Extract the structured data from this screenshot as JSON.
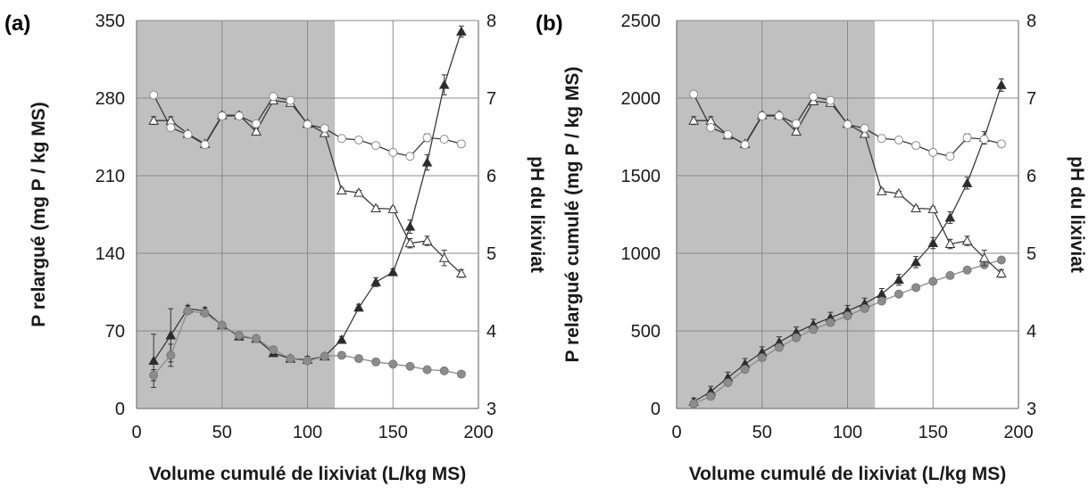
{
  "chart_data": [
    {
      "type": "line",
      "panel_label": "(a)",
      "xlabel": "Volume cumulé de lixiviat (L/kg MS)",
      "ylabel": "P relargué (mg P / kg MS)",
      "y2label": "pH du lixiviat",
      "xlim": [
        0,
        200
      ],
      "ylim": [
        0,
        350
      ],
      "y2lim": [
        3,
        8
      ],
      "xticks": [
        "0",
        "50",
        "100",
        "150",
        "200"
      ],
      "yticks": [
        "0",
        "70",
        "140",
        "210",
        "280",
        "350"
      ],
      "y2ticks": [
        "3",
        "4",
        "5",
        "6",
        "7",
        "8"
      ],
      "grid": true,
      "shaded_region_x": [
        0,
        116
      ],
      "series": [
        {
          "axis": "left",
          "marker": "triangle",
          "fill": "#2b2b2b",
          "x": [
            10,
            20,
            30,
            40,
            50,
            60,
            70,
            80,
            90,
            100,
            110,
            120,
            130,
            140,
            150,
            160,
            170,
            180,
            190
          ],
          "values": [
            43,
            66,
            90,
            88,
            75,
            65,
            63,
            50,
            45,
            44,
            47,
            62,
            91,
            114,
            123,
            164,
            222,
            292,
            340
          ],
          "errors": [
            24,
            24,
            3,
            3,
            3,
            3,
            3,
            3,
            3,
            3,
            3,
            3,
            3,
            4,
            3,
            6,
            7,
            9,
            5
          ]
        },
        {
          "axis": "left",
          "marker": "circle",
          "fill": "#8c8c8c",
          "x": [
            10,
            20,
            30,
            40,
            50,
            60,
            70,
            80,
            90,
            100,
            110,
            120,
            130,
            140,
            150,
            160,
            170,
            180,
            190
          ],
          "values": [
            30,
            48,
            88,
            86,
            75,
            66,
            63,
            53,
            45,
            43,
            47,
            48,
            45,
            42,
            40,
            38,
            35,
            34,
            31
          ],
          "errors": [
            5,
            10,
            2,
            2,
            2,
            2,
            2,
            2,
            2,
            2,
            2,
            2,
            2,
            2,
            2,
            2,
            2,
            2,
            2
          ]
        },
        {
          "axis": "right",
          "marker": "triangle",
          "fill": "#ffffff",
          "x": [
            10,
            20,
            30,
            40,
            50,
            60,
            70,
            80,
            90,
            100,
            110,
            120,
            130,
            140,
            150,
            160,
            170,
            180,
            190
          ],
          "values": [
            6.71,
            6.71,
            6.54,
            6.41,
            6.78,
            6.78,
            6.57,
            6.97,
            6.94,
            6.67,
            6.55,
            5.81,
            5.78,
            5.58,
            5.57,
            5.13,
            5.16,
            4.94,
            4.74
          ],
          "errors": [
            0.05,
            0.05,
            0.03,
            0.03,
            0.04,
            0.04,
            0.04,
            0.04,
            0.04,
            0.04,
            0.04,
            0.03,
            0.03,
            0.03,
            0.03,
            0.06,
            0.06,
            0.1,
            0.05
          ]
        },
        {
          "axis": "right",
          "marker": "circle",
          "fill": "#ffffff",
          "x": [
            10,
            20,
            30,
            40,
            50,
            60,
            70,
            80,
            90,
            100,
            110,
            120,
            130,
            140,
            150,
            160,
            170,
            180,
            190
          ],
          "values": [
            7.04,
            6.62,
            6.53,
            6.4,
            6.77,
            6.77,
            6.67,
            7.02,
            6.97,
            6.66,
            6.61,
            6.48,
            6.46,
            6.39,
            6.3,
            6.25,
            6.49,
            6.47,
            6.41
          ],
          "errors": [
            0,
            0,
            0,
            0,
            0,
            0,
            0,
            0,
            0,
            0,
            0,
            0,
            0,
            0,
            0,
            0,
            0.05,
            0,
            0
          ]
        }
      ]
    },
    {
      "type": "line",
      "panel_label": "(b)",
      "xlabel": "Volume cumulé de lixiviat (L/kg MS)",
      "ylabel": "P relargué cumulé (mg P / kg MS)",
      "y2label": "pH du lixiviat",
      "xlim": [
        0,
        200
      ],
      "ylim": [
        0,
        2500
      ],
      "y2lim": [
        3,
        8
      ],
      "xticks": [
        "0",
        "50",
        "100",
        "150",
        "200"
      ],
      "yticks": [
        "0",
        "500",
        "1000",
        "1500",
        "2000",
        "2500"
      ],
      "y2ticks": [
        "3",
        "4",
        "5",
        "6",
        "7",
        "8"
      ],
      "grid": true,
      "shaded_region_x": [
        0,
        116
      ],
      "series": [
        {
          "axis": "left",
          "marker": "triangle",
          "fill": "#2b2b2b",
          "x": [
            10,
            20,
            30,
            40,
            50,
            60,
            70,
            80,
            90,
            100,
            110,
            120,
            130,
            140,
            150,
            160,
            170,
            180,
            190
          ],
          "values": [
            43,
            109,
            199,
            287,
            362,
            427,
            490,
            540,
            585,
            629,
            676,
            738,
            829,
            943,
            1066,
            1230,
            1452,
            1744,
            2084
          ],
          "errors": [
            24,
            34,
            35,
            35,
            35,
            35,
            35,
            35,
            35,
            35,
            35,
            35,
            35,
            36,
            36,
            37,
            38,
            40,
            40
          ]
        },
        {
          "axis": "left",
          "marker": "circle",
          "fill": "#8c8c8c",
          "x": [
            10,
            20,
            30,
            40,
            50,
            60,
            70,
            80,
            90,
            100,
            110,
            120,
            130,
            140,
            150,
            160,
            170,
            180,
            190
          ],
          "values": [
            30,
            78,
            166,
            252,
            327,
            393,
            456,
            509,
            554,
            597,
            644,
            692,
            737,
            779,
            819,
            857,
            892,
            926,
            957
          ],
          "errors": [
            5,
            11,
            12,
            12,
            12,
            12,
            12,
            12,
            12,
            12,
            12,
            12,
            12,
            12,
            12,
            12,
            12,
            12,
            12
          ]
        },
        {
          "axis": "right",
          "marker": "triangle",
          "fill": "#ffffff",
          "x": [
            10,
            20,
            30,
            40,
            50,
            60,
            70,
            80,
            90,
            100,
            110,
            120,
            130,
            140,
            150,
            160,
            170,
            180,
            190
          ],
          "values": [
            6.71,
            6.71,
            6.52,
            6.41,
            6.78,
            6.78,
            6.57,
            6.96,
            6.94,
            6.67,
            6.54,
            5.8,
            5.77,
            5.58,
            5.57,
            5.12,
            5.16,
            4.94,
            4.74
          ],
          "errors": [
            0.05,
            0.05,
            0.03,
            0.03,
            0.04,
            0.04,
            0.04,
            0.04,
            0.04,
            0.04,
            0.04,
            0.03,
            0.03,
            0.03,
            0.03,
            0.06,
            0.06,
            0.1,
            0.05
          ]
        },
        {
          "axis": "right",
          "marker": "circle",
          "fill": "#ffffff",
          "x": [
            10,
            20,
            30,
            40,
            50,
            60,
            70,
            80,
            90,
            100,
            110,
            120,
            130,
            140,
            150,
            160,
            170,
            180,
            190
          ],
          "values": [
            7.05,
            6.62,
            6.53,
            6.4,
            6.77,
            6.77,
            6.67,
            7.02,
            6.97,
            6.66,
            6.61,
            6.48,
            6.46,
            6.39,
            6.3,
            6.25,
            6.49,
            6.47,
            6.41
          ],
          "errors": [
            0,
            0,
            0,
            0,
            0,
            0,
            0,
            0,
            0,
            0,
            0,
            0,
            0,
            0,
            0,
            0,
            0.05,
            0,
            0
          ]
        }
      ]
    }
  ]
}
